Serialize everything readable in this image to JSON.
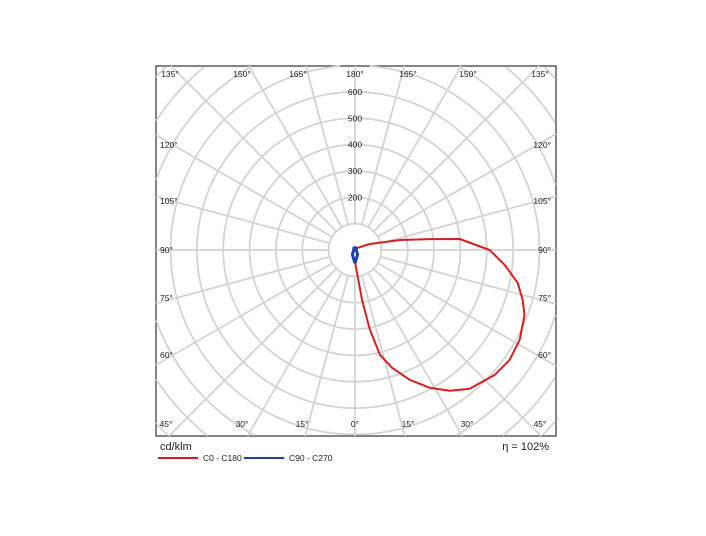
{
  "chart_data": {
    "type": "polar",
    "unit_label": "cd/klm",
    "efficiency_label": "η = 102%",
    "radial_ticks": [
      200,
      300,
      400,
      500,
      600
    ],
    "radial_grid_step": 100,
    "angle_grid_step_deg": 15,
    "angle_labels_top": [
      "135°",
      "150°",
      "165°",
      "180°",
      "165°",
      "150°",
      "135°"
    ],
    "angle_labels_left": [
      "120°",
      "105°",
      "90°",
      "75°",
      "60°"
    ],
    "angle_labels_right": [
      "120°",
      "105°",
      "90°",
      "75°",
      "60°"
    ],
    "angle_labels_bottom": [
      "45°",
      "30°",
      "15°",
      "0°",
      "15°",
      "30°",
      "45°"
    ],
    "grid": true,
    "legend_position": "bottom-left",
    "series": [
      {
        "name": "C0 - C180",
        "color": "#d42020",
        "side": "right",
        "points": [
          [
            0,
            45
          ],
          [
            8,
            191
          ],
          [
            10.6,
            308
          ],
          [
            13.4,
            409
          ],
          [
            17.4,
            468
          ],
          [
            22.9,
            535
          ],
          [
            28.5,
            595
          ],
          [
            34,
            644
          ],
          [
            39.6,
            683
          ],
          [
            48.2,
            711
          ],
          [
            54.6,
            720
          ],
          [
            61.4,
            712
          ],
          [
            69,
            689
          ],
          [
            73.4,
            664
          ],
          [
            78.6,
            630
          ],
          [
            84.3,
            571
          ],
          [
            90,
            511
          ],
          [
            96,
            400
          ],
          [
            98.3,
            287
          ],
          [
            102.5,
            175
          ],
          [
            112,
            61
          ],
          [
            180,
            5
          ]
        ]
      },
      {
        "name": "C90 - C270",
        "color": "#1f3fa8",
        "side": "both",
        "points": [
          [
            0,
            50
          ],
          [
            30,
            20
          ],
          [
            90,
            5
          ],
          [
            150,
            8
          ],
          [
            180,
            12
          ]
        ]
      }
    ]
  }
}
